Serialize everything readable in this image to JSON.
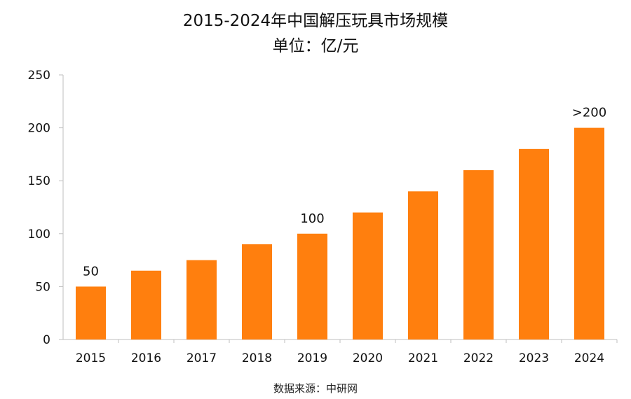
{
  "chart_data": {
    "type": "bar",
    "title": "2015-2024年中国解压玩具市场规模",
    "subtitle": "单位：亿/元",
    "categories": [
      "2015",
      "2016",
      "2017",
      "2018",
      "2019",
      "2020",
      "2021",
      "2022",
      "2023",
      "2024"
    ],
    "values": [
      50,
      65,
      75,
      90,
      100,
      120,
      140,
      160,
      180,
      200
    ],
    "data_labels": [
      "50",
      "",
      "",
      "",
      "100",
      "",
      "",
      "",
      "",
      ">200"
    ],
    "ylim": [
      0,
      250
    ],
    "yticks": [
      "0",
      "50",
      "100",
      "150",
      "200",
      "250"
    ],
    "xlabel": "",
    "ylabel": "",
    "grid": false,
    "bar_color": "#FF7F0E",
    "axis_color": "#BFBFBF"
  },
  "source": "数据来源：中研网"
}
